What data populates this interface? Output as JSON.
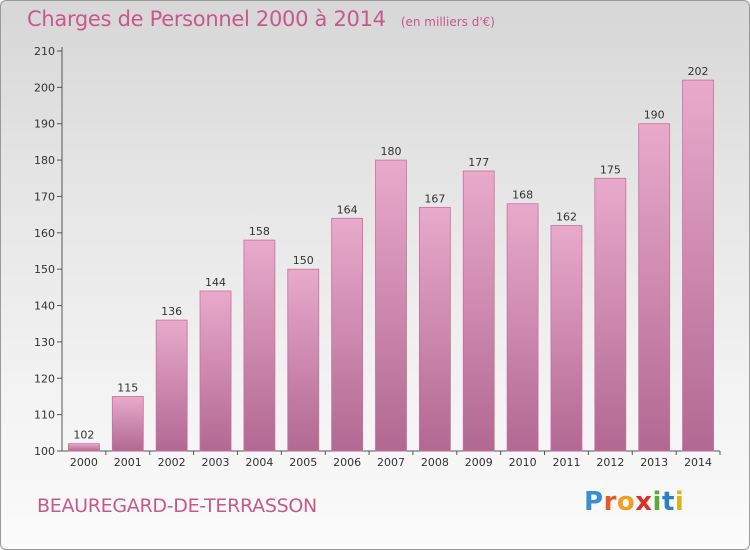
{
  "header": {
    "title": "Charges de Personnel 2000 à 2014",
    "subtitle": "(en milliers d'€)"
  },
  "footer": {
    "commune": "BEAUREGARD-DE-TERRASSON",
    "brand_letters": [
      "P",
      "r",
      "o",
      "x",
      "i",
      "t",
      "i"
    ],
    "brand_colors": [
      "#3a8fd0",
      "#e05a2a",
      "#f0a020",
      "#d8322a",
      "#5aaa3a",
      "#2c7fc0",
      "#e0b020"
    ]
  },
  "colors": {
    "title": "#c8588c",
    "bar_top": "#e8aacb",
    "bar_bottom": "#b26892",
    "bar_stroke": "#c8709c"
  },
  "chart_data": {
    "type": "bar",
    "categories": [
      "2000",
      "2001",
      "2002",
      "2003",
      "2004",
      "2005",
      "2006",
      "2007",
      "2008",
      "2009",
      "2010",
      "2011",
      "2012",
      "2013",
      "2014"
    ],
    "values": [
      102,
      115,
      136,
      144,
      158,
      150,
      164,
      180,
      167,
      177,
      168,
      162,
      175,
      190,
      202
    ],
    "ylim": [
      100,
      210
    ],
    "yticks": [
      100,
      110,
      120,
      130,
      140,
      150,
      160,
      170,
      180,
      190,
      200,
      210
    ],
    "grid": false,
    "legend": "none"
  }
}
